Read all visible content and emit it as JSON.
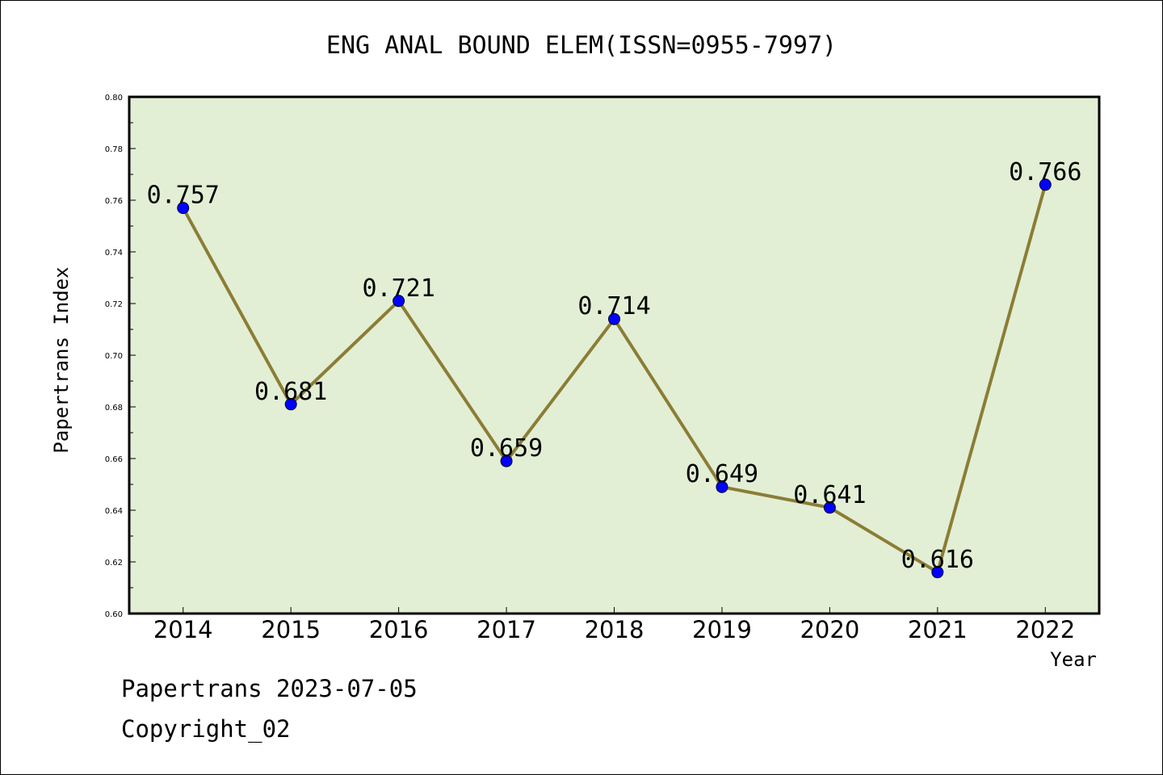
{
  "footer": {
    "source": "Papertrans 2023-07-05",
    "copyright": "Copyright_02"
  },
  "chart_data": {
    "type": "line",
    "title": "ENG ANAL BOUND ELEM(ISSN=0955-7997)",
    "xlabel": "Year",
    "ylabel": "Papertrans Index",
    "categories": [
      "2014",
      "2015",
      "2016",
      "2017",
      "2018",
      "2019",
      "2020",
      "2021",
      "2022"
    ],
    "series": [
      {
        "values": [
          0.757,
          0.681,
          0.721,
          0.659,
          0.714,
          0.649,
          0.641,
          0.616,
          0.766
        ],
        "data_labels": [
          "0.757",
          "0.681",
          "0.721",
          "0.659",
          "0.714",
          "0.649",
          "0.641",
          "0.616",
          "0.766"
        ]
      }
    ],
    "ylim": [
      0.6,
      0.8
    ],
    "yticks": [
      "0.60",
      "0.62",
      "0.64",
      "0.66",
      "0.68",
      "0.70",
      "0.72",
      "0.74",
      "0.76",
      "0.78",
      "0.80"
    ],
    "grid": false,
    "legend": "none",
    "colors": {
      "plot_background": "#e2efd5",
      "line": "#8b7d35",
      "marker": "#0000ff"
    }
  }
}
